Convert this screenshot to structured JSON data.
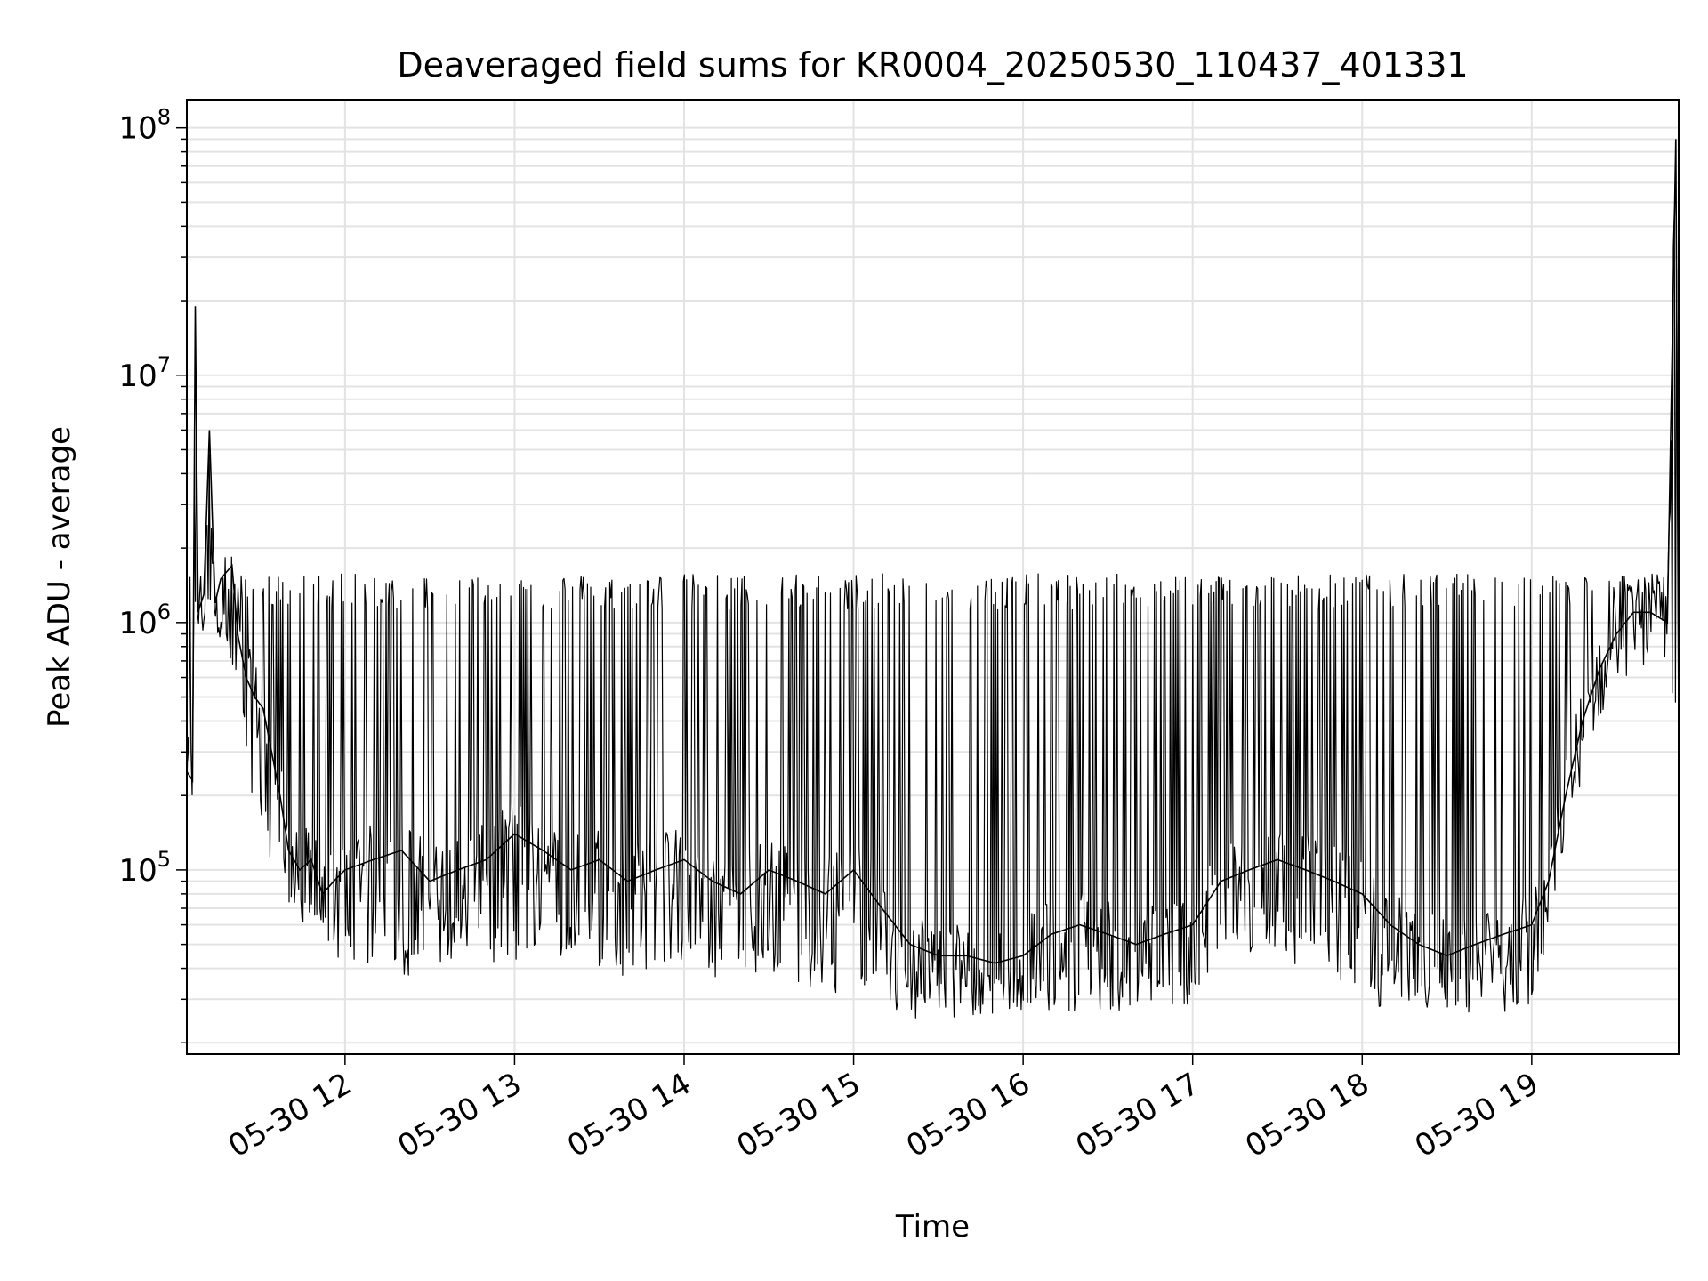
{
  "chart_data": {
    "type": "line",
    "title": "Deaveraged field sums for KR0004_20250530_110437_401331",
    "xlabel": "Time",
    "ylabel": "Peak ADU - average",
    "yscale": "log",
    "ylim": [
      18000,
      130000000
    ],
    "xlim": [
      "2025-05-30 11:04",
      "2025-05-30 19:52"
    ],
    "y_ticks": [
      {
        "value": 100000,
        "base": "10",
        "exp": "5"
      },
      {
        "value": 1000000,
        "base": "10",
        "exp": "6"
      },
      {
        "value": 10000000,
        "base": "10",
        "exp": "7"
      },
      {
        "value": 100000000,
        "base": "10",
        "exp": "8"
      }
    ],
    "x_ticks": [
      {
        "value": "2025-05-30 12:00",
        "label": "05-30 12"
      },
      {
        "value": "2025-05-30 13:00",
        "label": "05-30 13"
      },
      {
        "value": "2025-05-30 14:00",
        "label": "05-30 14"
      },
      {
        "value": "2025-05-30 15:00",
        "label": "05-30 15"
      },
      {
        "value": "2025-05-30 16:00",
        "label": "05-30 16"
      },
      {
        "value": "2025-05-30 17:00",
        "label": "05-30 17"
      },
      {
        "value": "2025-05-30 18:00",
        "label": "05-30 18"
      },
      {
        "value": "2025-05-30 19:00",
        "label": "05-30 19"
      }
    ],
    "grid": true,
    "line_color": "#000000",
    "series": [
      {
        "name": "",
        "x": [
          "2025-05-30 11:04",
          "2025-05-30 11:06",
          "2025-05-30 11:07",
          "2025-05-30 11:08",
          "2025-05-30 11:10",
          "2025-05-30 11:12",
          "2025-05-30 11:14",
          "2025-05-30 11:16",
          "2025-05-30 11:18",
          "2025-05-30 11:20",
          "2025-05-30 11:22",
          "2025-05-30 11:25",
          "2025-05-30 11:28",
          "2025-05-30 11:31",
          "2025-05-30 11:34",
          "2025-05-30 11:37",
          "2025-05-30 11:40",
          "2025-05-30 11:44",
          "2025-05-30 11:48",
          "2025-05-30 11:52",
          "2025-05-30 11:56",
          "2025-05-30 12:00",
          "2025-05-30 12:10",
          "2025-05-30 12:20",
          "2025-05-30 12:30",
          "2025-05-30 12:40",
          "2025-05-30 12:50",
          "2025-05-30 13:00",
          "2025-05-30 13:10",
          "2025-05-30 13:20",
          "2025-05-30 13:30",
          "2025-05-30 13:40",
          "2025-05-30 13:50",
          "2025-05-30 14:00",
          "2025-05-30 14:10",
          "2025-05-30 14:20",
          "2025-05-30 14:30",
          "2025-05-30 14:40",
          "2025-05-30 14:50",
          "2025-05-30 15:00",
          "2025-05-30 15:10",
          "2025-05-30 15:20",
          "2025-05-30 15:30",
          "2025-05-30 15:40",
          "2025-05-30 15:50",
          "2025-05-30 16:00",
          "2025-05-30 16:10",
          "2025-05-30 16:20",
          "2025-05-30 16:30",
          "2025-05-30 16:40",
          "2025-05-30 16:50",
          "2025-05-30 17:00",
          "2025-05-30 17:10",
          "2025-05-30 17:20",
          "2025-05-30 17:30",
          "2025-05-30 17:40",
          "2025-05-30 17:50",
          "2025-05-30 18:00",
          "2025-05-30 18:10",
          "2025-05-30 18:20",
          "2025-05-30 18:30",
          "2025-05-30 18:40",
          "2025-05-30 18:50",
          "2025-05-30 19:00",
          "2025-05-30 19:06",
          "2025-05-30 19:12",
          "2025-05-30 19:18",
          "2025-05-30 19:24",
          "2025-05-30 19:30",
          "2025-05-30 19:36",
          "2025-05-30 19:42",
          "2025-05-30 19:48",
          "2025-05-30 19:51",
          "2025-05-30 19:52"
        ],
        "y": [
          250000,
          230000,
          19000000,
          1100000,
          1300000,
          6000000,
          1200000,
          1500000,
          1600000,
          1700000,
          900000,
          600000,
          500000,
          450000,
          300000,
          200000,
          120000,
          100000,
          110000,
          80000,
          90000,
          100000,
          110000,
          120000,
          90000,
          100000,
          110000,
          140000,
          120000,
          100000,
          110000,
          90000,
          100000,
          110000,
          90000,
          80000,
          100000,
          90000,
          80000,
          100000,
          70000,
          50000,
          45000,
          45000,
          42000,
          45000,
          55000,
          60000,
          55000,
          50000,
          55000,
          60000,
          90000,
          100000,
          110000,
          100000,
          90000,
          80000,
          60000,
          50000,
          45000,
          50000,
          55000,
          60000,
          90000,
          200000,
          400000,
          650000,
          900000,
          1100000,
          1100000,
          1000000,
          90000000,
          400000
        ],
        "low_envelope": [
          250000,
          230000,
          1000000,
          1000000,
          1000000,
          1000000,
          1000000,
          1000000,
          800000,
          600000,
          500000,
          300000,
          200000,
          150000,
          120000,
          100000,
          80000,
          60000,
          55000,
          50000,
          45000,
          50000,
          45000,
          40000,
          45000,
          50000,
          45000,
          45000,
          48000,
          50000,
          45000,
          40000,
          42000,
          45000,
          40000,
          38000,
          40000,
          38000,
          35000,
          35000,
          30000,
          28000,
          28000,
          27000,
          28000,
          30000,
          30000,
          30000,
          30000,
          29000,
          30000,
          32000,
          45000,
          50000,
          48000,
          45000,
          40000,
          32000,
          30000,
          28000,
          28000,
          28000,
          28000,
          30000,
          60000,
          150000,
          300000,
          500000,
          800000,
          950000,
          950000,
          850000,
          400000,
          400000
        ],
        "spike_peak": 1500000
      }
    ]
  }
}
